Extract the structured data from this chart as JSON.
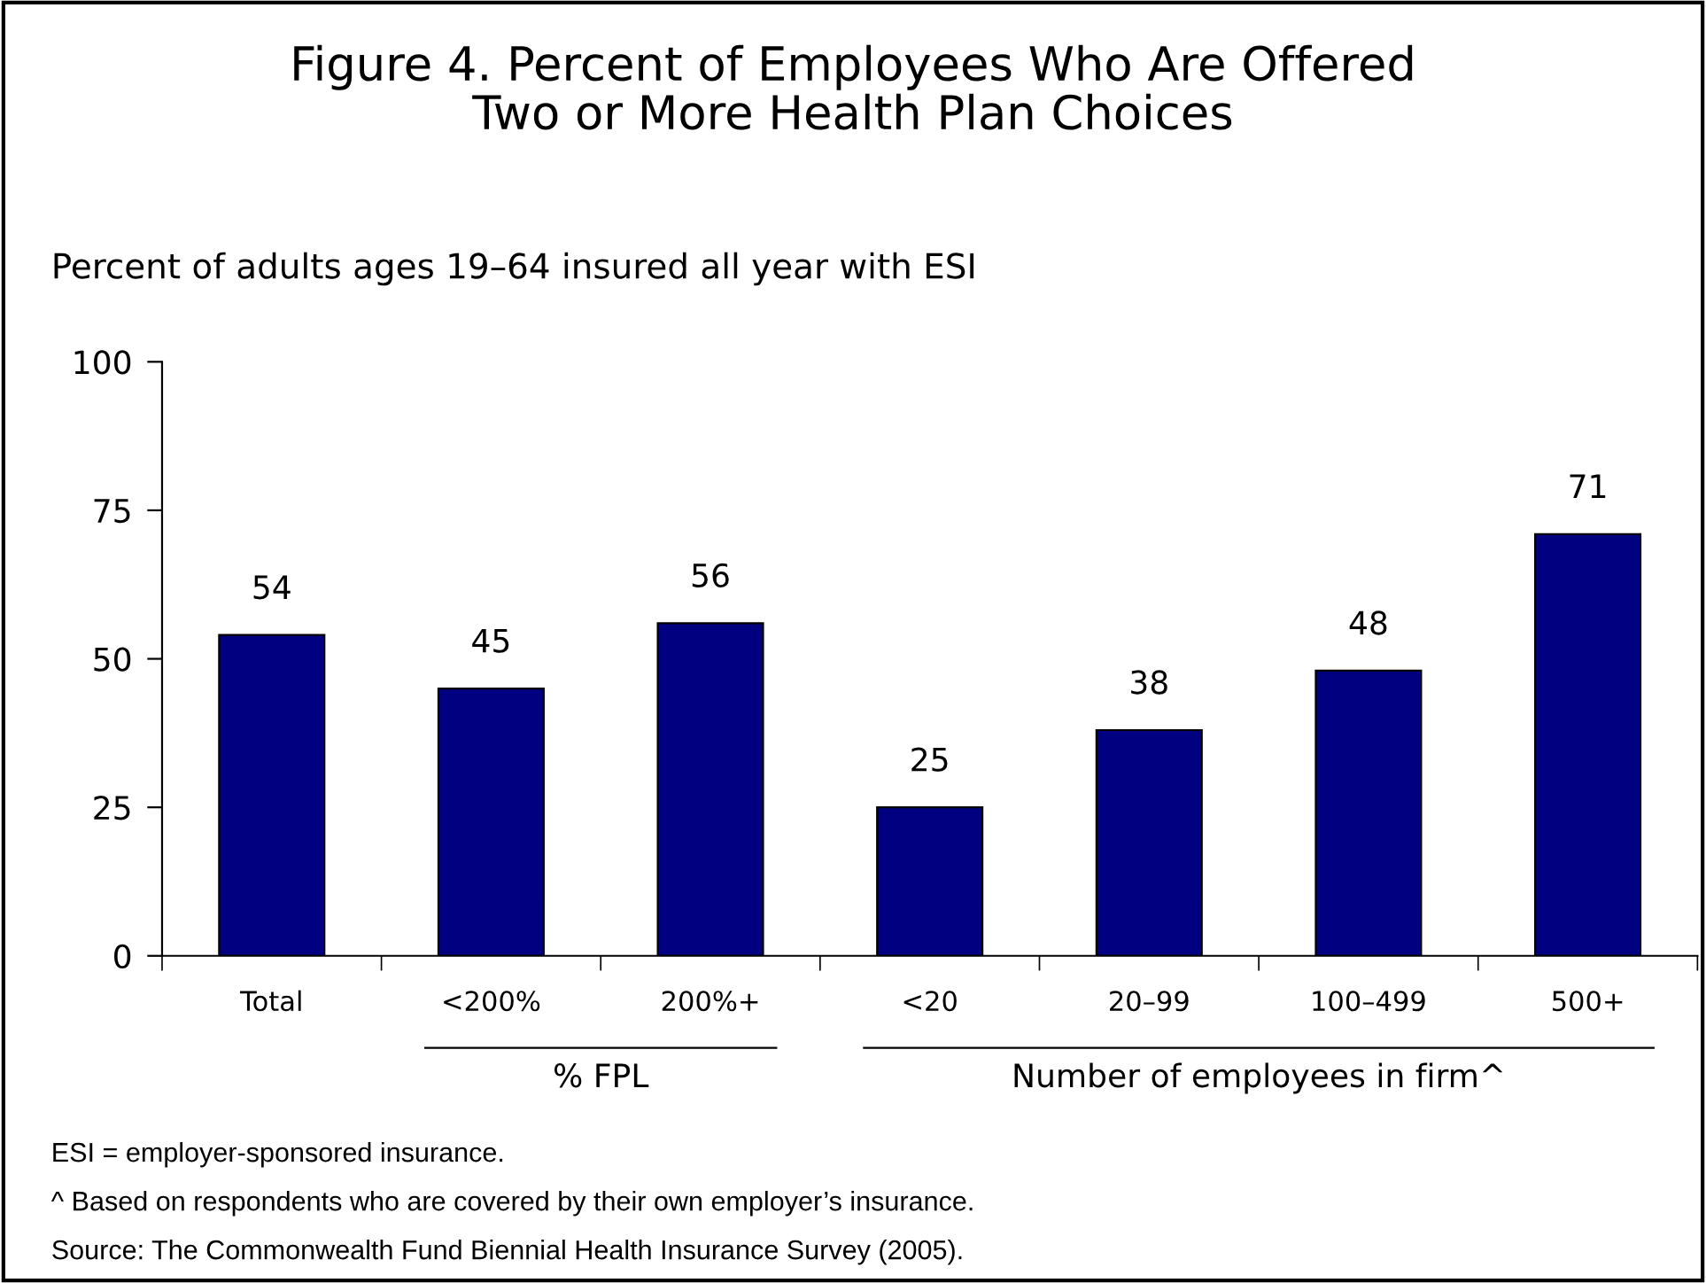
{
  "chart_data": {
    "type": "bar",
    "title": "Figure 4. Percent of Employees Who Are Offered\nTwo or More Health Plan Choices",
    "subtitle": "Percent of adults ages 19–64 insured all year with ESI",
    "categories": [
      "Total",
      "<200%",
      "200%+",
      "<20",
      "20–99",
      "100–499",
      "500+"
    ],
    "values": [
      54,
      45,
      56,
      25,
      38,
      48,
      71
    ],
    "color": "#000080",
    "ylim": [
      0,
      100
    ],
    "yticks": [
      0,
      25,
      50,
      75,
      100
    ],
    "grid": false,
    "data_labels": true,
    "annotations": [
      "% FPL",
      "Number of employees in firm^",
      "ESI = employer-sponsored insurance.",
      "^ Based on respondents who are covered by their own employer’s insurance.",
      "Source: The Commonwealth Fund Biennial Health Insurance Survey (2005)."
    ]
  }
}
